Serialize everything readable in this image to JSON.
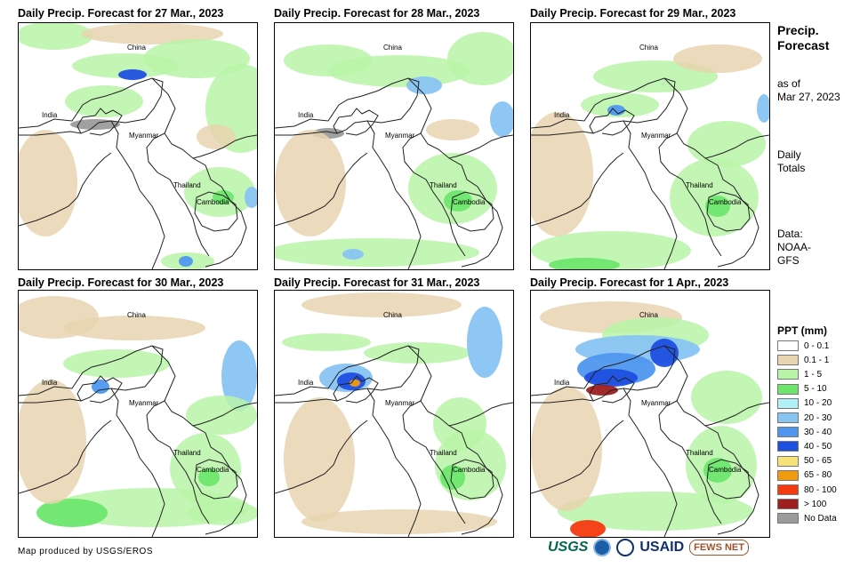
{
  "panels": [
    {
      "title": "Daily Precip. Forecast for 27 Mar., 2023"
    },
    {
      "title": "Daily Precip. Forecast for 28 Mar., 2023"
    },
    {
      "title": "Daily Precip. Forecast for 29 Mar., 2023"
    },
    {
      "title": "Daily Precip. Forecast for 30 Mar., 2023"
    },
    {
      "title": "Daily Precip. Forecast for 31 Mar., 2023"
    },
    {
      "title": "Daily Precip. Forecast for 1 Apr., 2023"
    }
  ],
  "map_labels": {
    "china": "China",
    "india": "India",
    "myanmar": "Myanmar",
    "thailand": "Thailand",
    "cambodia": "Cambodia"
  },
  "sidebar": {
    "title_line1": "Precip.",
    "title_line2": "Forecast",
    "asof_line1": "as of",
    "asof_line2": "Mar 27, 2023",
    "totals_line1": "Daily",
    "totals_line2": "Totals",
    "data_line1": "Data:",
    "data_line2": "NOAA-",
    "data_line3": "GFS"
  },
  "legend": {
    "title": "PPT (mm)",
    "items": [
      {
        "label": "0 - 0.1",
        "color": "#ffffff"
      },
      {
        "label": "0.1 - 1",
        "color": "#e8d4b0"
      },
      {
        "label": "1 - 5",
        "color": "#b8f5a8"
      },
      {
        "label": "5 - 10",
        "color": "#6ee66e"
      },
      {
        "label": "10 - 20",
        "color": "#b2f0f8"
      },
      {
        "label": "20 - 30",
        "color": "#88c4f2"
      },
      {
        "label": "30 - 40",
        "color": "#4f97ee"
      },
      {
        "label": "40 - 50",
        "color": "#1f4fe0"
      },
      {
        "label": "50 - 65",
        "color": "#f8e27a"
      },
      {
        "label": "65 - 80",
        "color": "#f09a10"
      },
      {
        "label": "80 - 100",
        "color": "#f43a10"
      },
      {
        "label": "> 100",
        "color": "#9e1f1f"
      },
      {
        "label": "No Data",
        "color": "#9b9b9b"
      }
    ]
  },
  "credit": "Map produced by USGS/EROS",
  "logos": {
    "usgs": "USGS",
    "usaid": "USAID",
    "fews": "FEWS NET"
  }
}
